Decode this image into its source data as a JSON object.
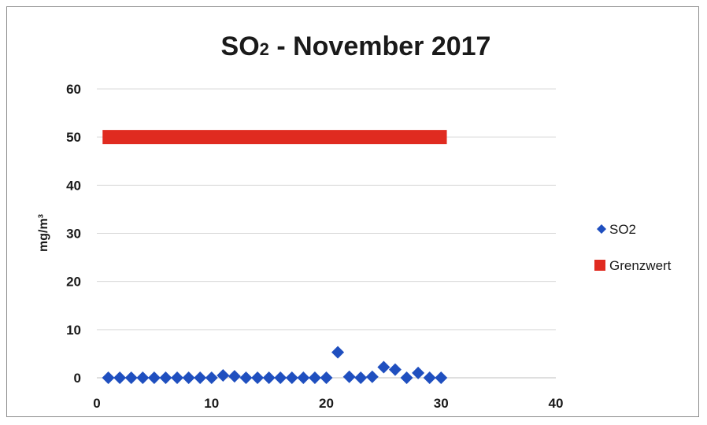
{
  "chart_data": {
    "type": "scatter",
    "title_main": "SO",
    "title_sub": "2",
    "title_rest": " -  November 2017",
    "xlabel": "",
    "ylabel": "mg/m³",
    "xlim": [
      0,
      40
    ],
    "ylim": [
      0,
      60
    ],
    "x_ticks": [
      "0",
      "10",
      "20",
      "30",
      "40"
    ],
    "y_ticks": [
      "0",
      "10",
      "20",
      "30",
      "40",
      "50",
      "60"
    ],
    "grid": "horizontal",
    "legend_position": "right",
    "series": [
      {
        "name": "SO2",
        "marker": "diamond",
        "color": "#1f4fbf",
        "x": [
          1,
          2,
          3,
          4,
          5,
          6,
          7,
          8,
          9,
          10,
          11,
          12,
          13,
          14,
          15,
          16,
          17,
          18,
          19,
          20,
          21,
          22,
          23,
          24,
          25,
          26,
          27,
          28,
          29,
          30
        ],
        "y": [
          0,
          0,
          0,
          0,
          0,
          0,
          0,
          0,
          0,
          0,
          0.5,
          0.3,
          0,
          0,
          0,
          0,
          0,
          0,
          0,
          0,
          5.3,
          0.2,
          0,
          0.2,
          2.2,
          1.7,
          0,
          1.0,
          0,
          0
        ]
      },
      {
        "name": "Grenzwert",
        "marker": "line",
        "color": "#e02b20",
        "x": [
          0.5,
          30.5
        ],
        "y": [
          50,
          50
        ]
      }
    ]
  }
}
